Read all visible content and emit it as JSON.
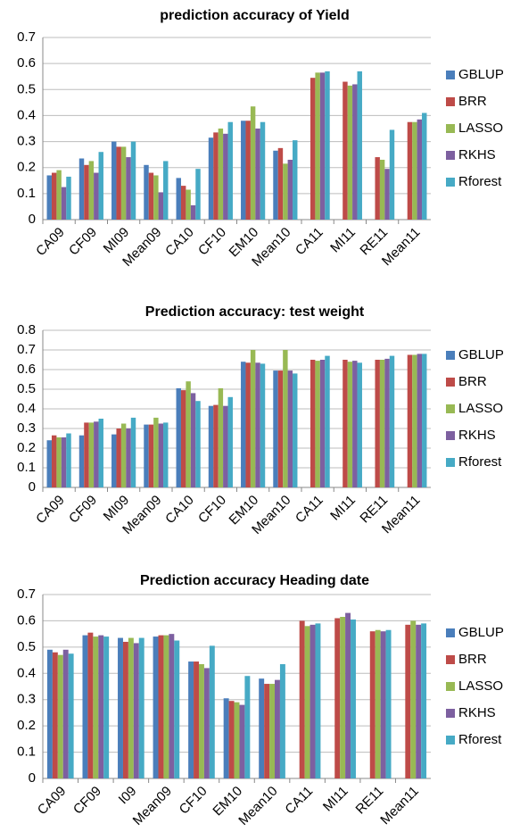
{
  "chart_data": [
    {
      "type": "bar",
      "title": "prediction accuracy of Yield",
      "categories": [
        "CA09",
        "CF09",
        "MI09",
        "Mean09",
        "CA10",
        "CF10",
        "EM10",
        "Mean10",
        "CA11",
        "MI11",
        "RE11",
        "Mean11"
      ],
      "series": [
        {
          "name": "GBLUP",
          "color": "#4a7ebb",
          "values": [
            0.17,
            0.235,
            0.3,
            0.21,
            0.16,
            0.315,
            0.38,
            0.265,
            null,
            null,
            null,
            null
          ]
        },
        {
          "name": "BRR",
          "color": "#be4b48",
          "values": [
            0.18,
            0.21,
            0.28,
            0.18,
            0.13,
            0.335,
            0.38,
            0.275,
            0.545,
            0.53,
            0.24,
            0.375
          ]
        },
        {
          "name": "LASSO",
          "color": "#98b954",
          "values": [
            0.19,
            0.225,
            0.28,
            0.17,
            0.115,
            0.35,
            0.435,
            0.215,
            0.565,
            0.515,
            0.23,
            0.375
          ]
        },
        {
          "name": "RKHS",
          "color": "#7d60a0",
          "values": [
            0.125,
            0.18,
            0.24,
            0.105,
            0.055,
            0.33,
            0.35,
            0.23,
            0.565,
            0.52,
            0.195,
            0.385
          ]
        },
        {
          "name": "Rforest",
          "color": "#46aac5",
          "values": [
            0.165,
            0.26,
            0.3,
            0.225,
            0.195,
            0.375,
            0.375,
            0.305,
            0.57,
            0.57,
            0.345,
            0.41
          ]
        }
      ],
      "ylim": [
        0,
        0.7
      ],
      "yticks": [
        0,
        0.1,
        0.2,
        0.3,
        0.4,
        0.5,
        0.6,
        0.7
      ],
      "grid": true,
      "legend": "right"
    },
    {
      "type": "bar",
      "title": "Prediction accuracy: test weight",
      "categories": [
        "CA09",
        "CF09",
        "MI09",
        "Mean09",
        "CA10",
        "CF10",
        "EM10",
        "Mean10",
        "CA11",
        "MI11",
        "RE11",
        "Mean11"
      ],
      "series": [
        {
          "name": "GBLUP",
          "color": "#4a7ebb",
          "values": [
            0.24,
            0.265,
            0.27,
            0.32,
            0.505,
            0.415,
            0.64,
            0.595,
            null,
            null,
            null,
            null
          ]
        },
        {
          "name": "BRR",
          "color": "#be4b48",
          "values": [
            0.265,
            0.33,
            0.3,
            0.32,
            0.495,
            0.42,
            0.635,
            0.595,
            0.65,
            0.65,
            0.65,
            0.675
          ]
        },
        {
          "name": "LASSO",
          "color": "#98b954",
          "values": [
            0.255,
            0.33,
            0.325,
            0.355,
            0.54,
            0.505,
            0.7,
            0.7,
            0.645,
            0.64,
            0.65,
            0.675
          ]
        },
        {
          "name": "RKHS",
          "color": "#7d60a0",
          "values": [
            0.255,
            0.335,
            0.3,
            0.325,
            0.48,
            0.415,
            0.635,
            0.595,
            0.65,
            0.645,
            0.655,
            0.68
          ]
        },
        {
          "name": "Rforest",
          "color": "#46aac5",
          "values": [
            0.275,
            0.35,
            0.355,
            0.33,
            0.44,
            0.46,
            0.63,
            0.58,
            0.67,
            0.635,
            0.67,
            0.68
          ]
        }
      ],
      "ylim": [
        0,
        0.8
      ],
      "yticks": [
        0,
        0.1,
        0.2,
        0.3,
        0.4,
        0.5,
        0.6,
        0.7,
        0.8
      ],
      "grid": true,
      "legend": "right"
    },
    {
      "type": "bar",
      "title": "Prediction accuracy Heading date",
      "categories": [
        "CA09",
        "CF09",
        "I09",
        "Mean09",
        "CF10",
        "EM10",
        "Mean10",
        "CA11",
        "MI11",
        "RE11",
        "Mean11"
      ],
      "series": [
        {
          "name": "GBLUP",
          "color": "#4a7ebb",
          "values": [
            0.49,
            0.545,
            0.535,
            0.54,
            0.445,
            0.305,
            0.38,
            null,
            null,
            null,
            null
          ]
        },
        {
          "name": "BRR",
          "color": "#be4b48",
          "values": [
            0.48,
            0.555,
            0.52,
            0.545,
            0.445,
            0.295,
            0.36,
            0.6,
            0.61,
            0.56,
            0.585
          ]
        },
        {
          "name": "LASSO",
          "color": "#98b954",
          "values": [
            0.47,
            0.54,
            0.535,
            0.545,
            0.435,
            0.29,
            0.36,
            0.58,
            0.615,
            0.565,
            0.6
          ]
        },
        {
          "name": "RKHS",
          "color": "#7d60a0",
          "values": [
            0.49,
            0.545,
            0.515,
            0.55,
            0.42,
            0.28,
            0.375,
            0.585,
            0.63,
            0.56,
            0.585
          ]
        },
        {
          "name": "Rforest",
          "color": "#46aac5",
          "values": [
            0.475,
            0.54,
            0.535,
            0.525,
            0.505,
            0.39,
            0.435,
            0.59,
            0.605,
            0.565,
            0.59
          ]
        }
      ],
      "ylim": [
        0,
        0.7
      ],
      "yticks": [
        0,
        0.1,
        0.2,
        0.3,
        0.4,
        0.5,
        0.6,
        0.7
      ],
      "grid": true,
      "legend": "right"
    }
  ]
}
